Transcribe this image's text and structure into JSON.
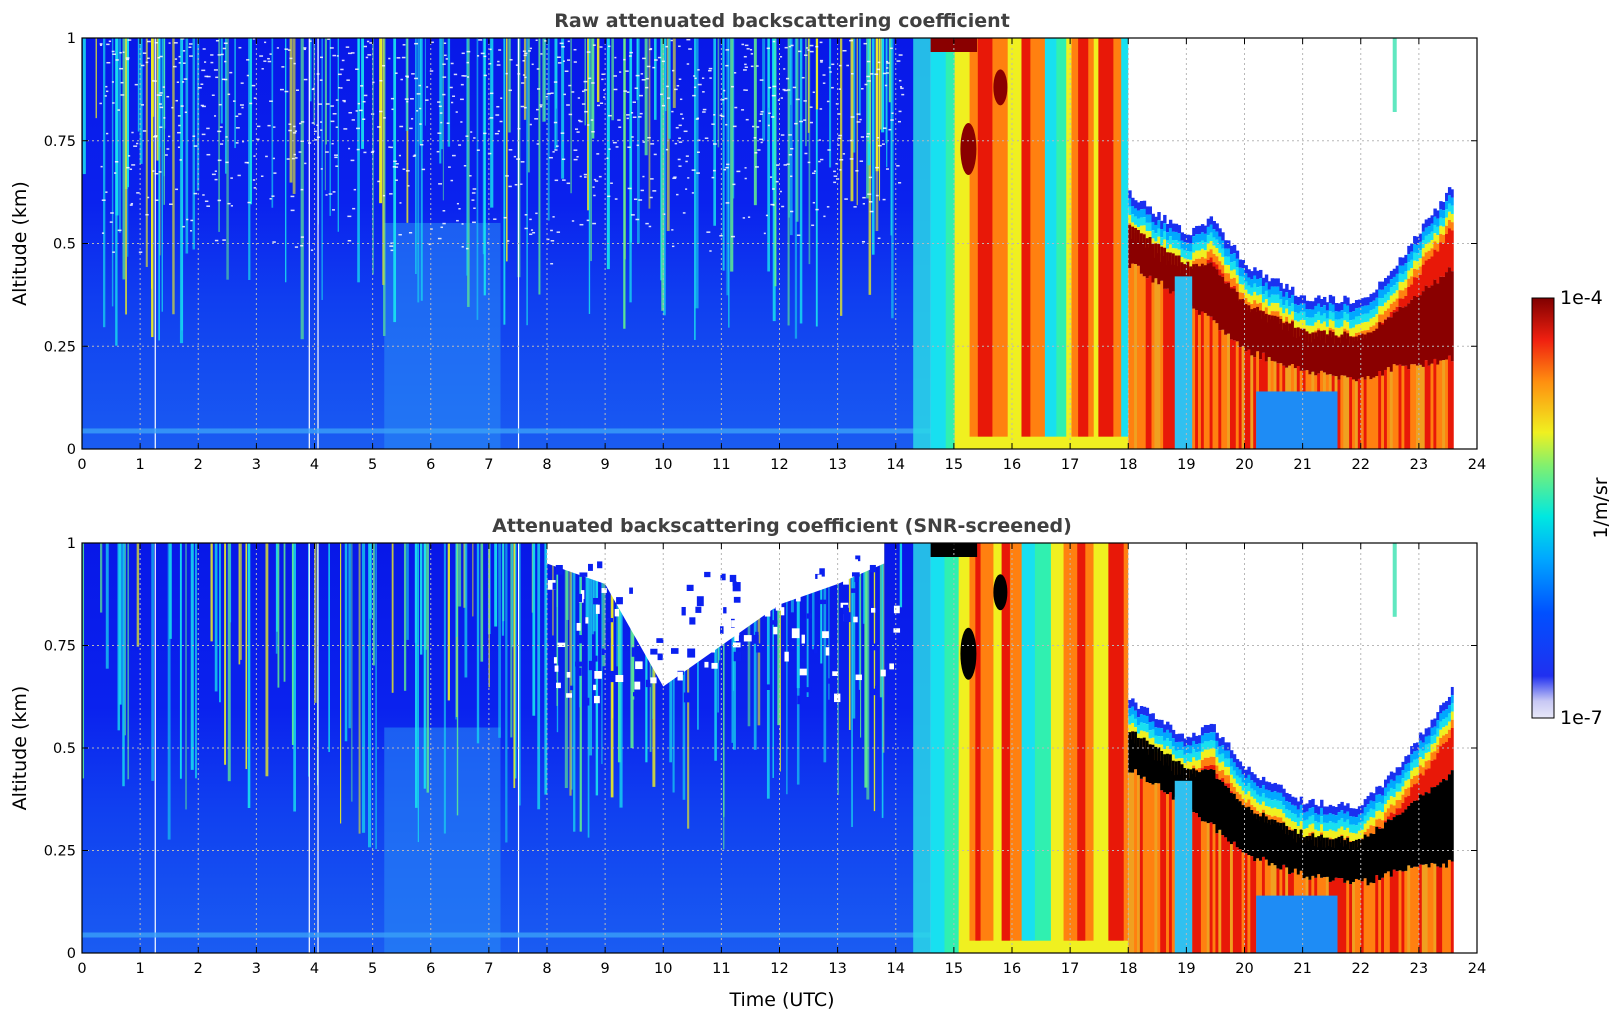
{
  "chart_data": [
    {
      "type": "heatmap",
      "title": "Raw attenuated backscattering coefficient",
      "xlabel": "",
      "ylabel": "Altitude (km)",
      "xlim": [
        0,
        24
      ],
      "ylim": [
        0,
        1
      ],
      "xticks": [
        "0",
        "1",
        "2",
        "3",
        "4",
        "5",
        "6",
        "7",
        "8",
        "9",
        "10",
        "11",
        "12",
        "13",
        "14",
        "15",
        "16",
        "17",
        "18",
        "19",
        "20",
        "21",
        "22",
        "23",
        "24"
      ],
      "yticks": [
        "0",
        "0.25",
        "0.5",
        "0.75",
        "1"
      ],
      "grid": true,
      "screened": false,
      "data_end_hour": 23.6,
      "fog_onset_hour": 14.6,
      "layer_bottom_km": [
        [
          18.0,
          0.45
        ],
        [
          19.0,
          0.36
        ],
        [
          20.0,
          0.24
        ],
        [
          21.0,
          0.19
        ],
        [
          22.0,
          0.17
        ],
        [
          22.6,
          0.2
        ],
        [
          23.6,
          0.22
        ]
      ],
      "layer_top_km": [
        [
          18.0,
          0.62
        ],
        [
          19.0,
          0.52
        ],
        [
          19.4,
          0.56
        ],
        [
          20.0,
          0.45
        ],
        [
          21.0,
          0.37
        ],
        [
          22.0,
          0.36
        ],
        [
          22.6,
          0.45
        ],
        [
          23.6,
          0.65
        ]
      ]
    },
    {
      "type": "heatmap",
      "title": "Attenuated backscattering coefficient (SNR-screened)",
      "xlabel": "Time (UTC)",
      "ylabel": "Altitude (km)",
      "xlim": [
        0,
        24
      ],
      "ylim": [
        0,
        1
      ],
      "xticks": [
        "0",
        "1",
        "2",
        "3",
        "4",
        "5",
        "6",
        "7",
        "8",
        "9",
        "10",
        "11",
        "12",
        "13",
        "14",
        "15",
        "16",
        "17",
        "18",
        "19",
        "20",
        "21",
        "22",
        "23",
        "24"
      ],
      "yticks": [
        "0",
        "0.25",
        "0.5",
        "0.75",
        "1"
      ],
      "grid": true,
      "screened": true,
      "data_end_hour": 23.6,
      "fog_onset_hour": 14.6,
      "screened_gap": [
        [
          8.0,
          0.95
        ],
        [
          9.0,
          0.9
        ],
        [
          10.0,
          0.65
        ],
        [
          11.0,
          0.75
        ],
        [
          12.0,
          0.85
        ],
        [
          13.0,
          0.9
        ],
        [
          13.8,
          0.95
        ]
      ],
      "layer_bottom_km": [
        [
          18.0,
          0.45
        ],
        [
          19.0,
          0.36
        ],
        [
          20.0,
          0.24
        ],
        [
          21.0,
          0.19
        ],
        [
          22.0,
          0.17
        ],
        [
          22.6,
          0.2
        ],
        [
          23.6,
          0.22
        ]
      ],
      "layer_top_km": [
        [
          18.0,
          0.62
        ],
        [
          19.0,
          0.52
        ],
        [
          19.4,
          0.56
        ],
        [
          20.0,
          0.45
        ],
        [
          21.0,
          0.37
        ],
        [
          22.0,
          0.36
        ],
        [
          22.6,
          0.45
        ],
        [
          23.6,
          0.65
        ]
      ]
    }
  ],
  "colorbar": {
    "max_label": "1e-4",
    "min_label": "1e-7",
    "unit_label": "1/m/sr",
    "colormap": "jet"
  },
  "colors": {
    "low": "#0a1cf0",
    "mid_low": "#1e6cf5",
    "cyan": "#18e0f0",
    "yellow": "#f0f020",
    "orange": "#ff8010",
    "red": "#e81808",
    "dark_red": "#8a0000",
    "saturated_screened": "#000000"
  }
}
